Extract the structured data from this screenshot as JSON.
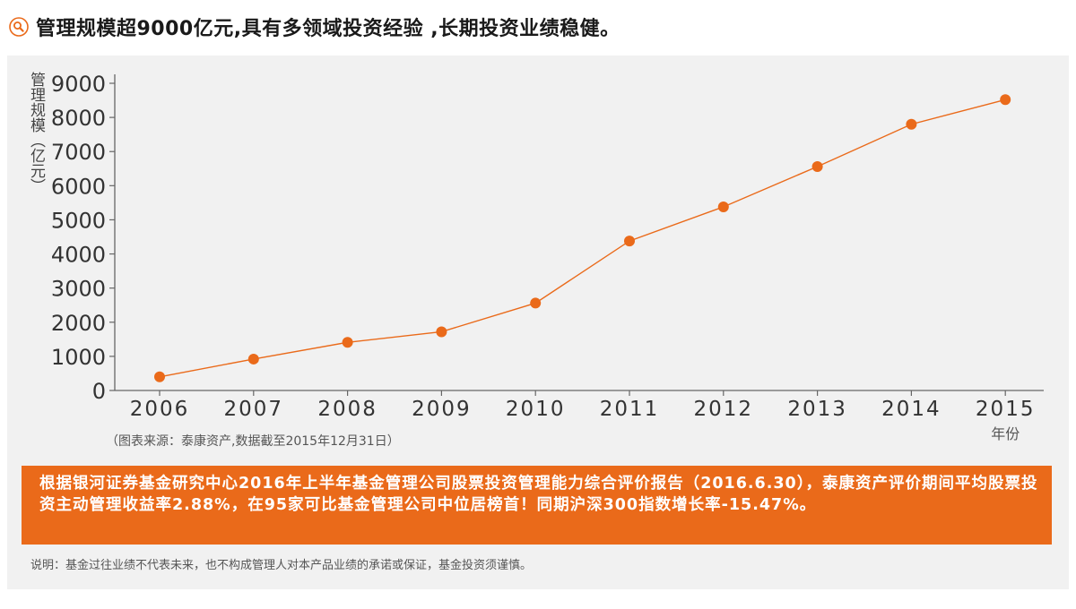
{
  "header": {
    "title": "管理规模超9000亿元,具有多领域投资经验 ,长期投资业绩稳健。",
    "icon": "search-icon",
    "icon_color": "#ea6a1a"
  },
  "chart_data": {
    "type": "line",
    "title": "",
    "ylabel": "管理规模（亿元）",
    "xlabel": "年份",
    "x": [
      "2006",
      "2007",
      "2008",
      "2009",
      "2010",
      "2011",
      "2012",
      "2013",
      "2014",
      "2015"
    ],
    "series": [
      {
        "values": [
          400,
          920,
          1410,
          1720,
          2560,
          4380,
          5380,
          6560,
          7800,
          8520
        ]
      }
    ],
    "ylim": [
      0,
      9000
    ],
    "yticks": [
      "0",
      "1000",
      "2000",
      "3000",
      "4000",
      "5000",
      "6000",
      "7000",
      "8000",
      "9000"
    ],
    "grid": false,
    "color": "#ea6a1a"
  },
  "source": "（图表来源：泰康资产,数据截至2015年12月31日）",
  "highlight": "根据银河证券基金研究中心2016年上半年基金管理公司股票投资管理能力综合评价报告（2016.6.30），泰康资产评价期间平均股票投资主动管理收益率2.88%，在95家可比基金管理公司中位居榜首！同期沪深300指数增长率-15.47%。",
  "highlight_color": "#ea6a1a",
  "note": "说明：基金过往业绩不代表未来，也不构成管理人对本产品业绩的承诺或保证，基金投资须谨慎。"
}
